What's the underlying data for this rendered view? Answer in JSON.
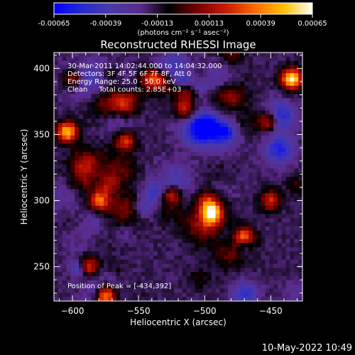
{
  "colorbar": {
    "stops": [
      "#0000ff",
      "#2a2ad0",
      "#4a3aa8",
      "#5a2a8a",
      "#000000",
      "#7a0000",
      "#cc1a00",
      "#ff6a00",
      "#ffc000",
      "#ffffff"
    ],
    "tick_labels": [
      "-0.00065",
      "-0.00039",
      "-0.00013",
      "0.00013",
      "0.00039",
      "0.00065"
    ],
    "units_label": "(photons cm⁻² s⁻¹ asec⁻²)"
  },
  "chart_data": {
    "type": "heatmap",
    "title": "Reconstructed RHESSI Image",
    "xlabel": "Heliocentric X (arcsec)",
    "ylabel": "Heliocentric Y (arcsec)",
    "xlim": [
      -614,
      -426
    ],
    "ylim": [
      224,
      412
    ],
    "xticks": [
      -600,
      -550,
      -500,
      -450
    ],
    "yticks": [
      250,
      300,
      350,
      400
    ],
    "xtick_labels": [
      "−600",
      "−550",
      "−500",
      "−450"
    ],
    "ytick_labels": [
      "250",
      "300",
      "350",
      "400"
    ],
    "value_range": [
      -0.00065,
      0.00065
    ],
    "peak": [
      -434,
      392
    ],
    "info_lines": [
      "30-Mar-2011 14:02:44.000 to 14:04:32.000",
      "Detectors: 3F 4F 5F 6F 7F 8F, Att 0",
      "Energy Range: 25.0 - 50.0 keV",
      "Clean     Total counts: 2.85E+03"
    ],
    "peak_label": "Position of Peak = [-434,392]",
    "bright_sources": [
      {
        "x": -434,
        "y": 392,
        "v": 1.0
      },
      {
        "x": -604,
        "y": 352,
        "v": 0.85
      },
      {
        "x": -575,
        "y": 228,
        "v": 0.9
      },
      {
        "x": -495,
        "y": 290,
        "v": 0.82
      },
      {
        "x": -525,
        "y": 305,
        "v": 0.6
      },
      {
        "x": -470,
        "y": 272,
        "v": 0.7
      },
      {
        "x": -580,
        "y": 300,
        "v": 0.65
      },
      {
        "x": -540,
        "y": 392,
        "v": 0.55
      },
      {
        "x": -560,
        "y": 345,
        "v": 0.55
      },
      {
        "x": -515,
        "y": 368,
        "v": 0.5
      },
      {
        "x": -452,
        "y": 360,
        "v": 0.55
      },
      {
        "x": -600,
        "y": 392,
        "v": 0.5
      },
      {
        "x": -588,
        "y": 250,
        "v": 0.55
      },
      {
        "x": -450,
        "y": 300,
        "v": 0.5
      }
    ]
  },
  "footer": {
    "timestamp": "10-May-2022 10:49"
  }
}
